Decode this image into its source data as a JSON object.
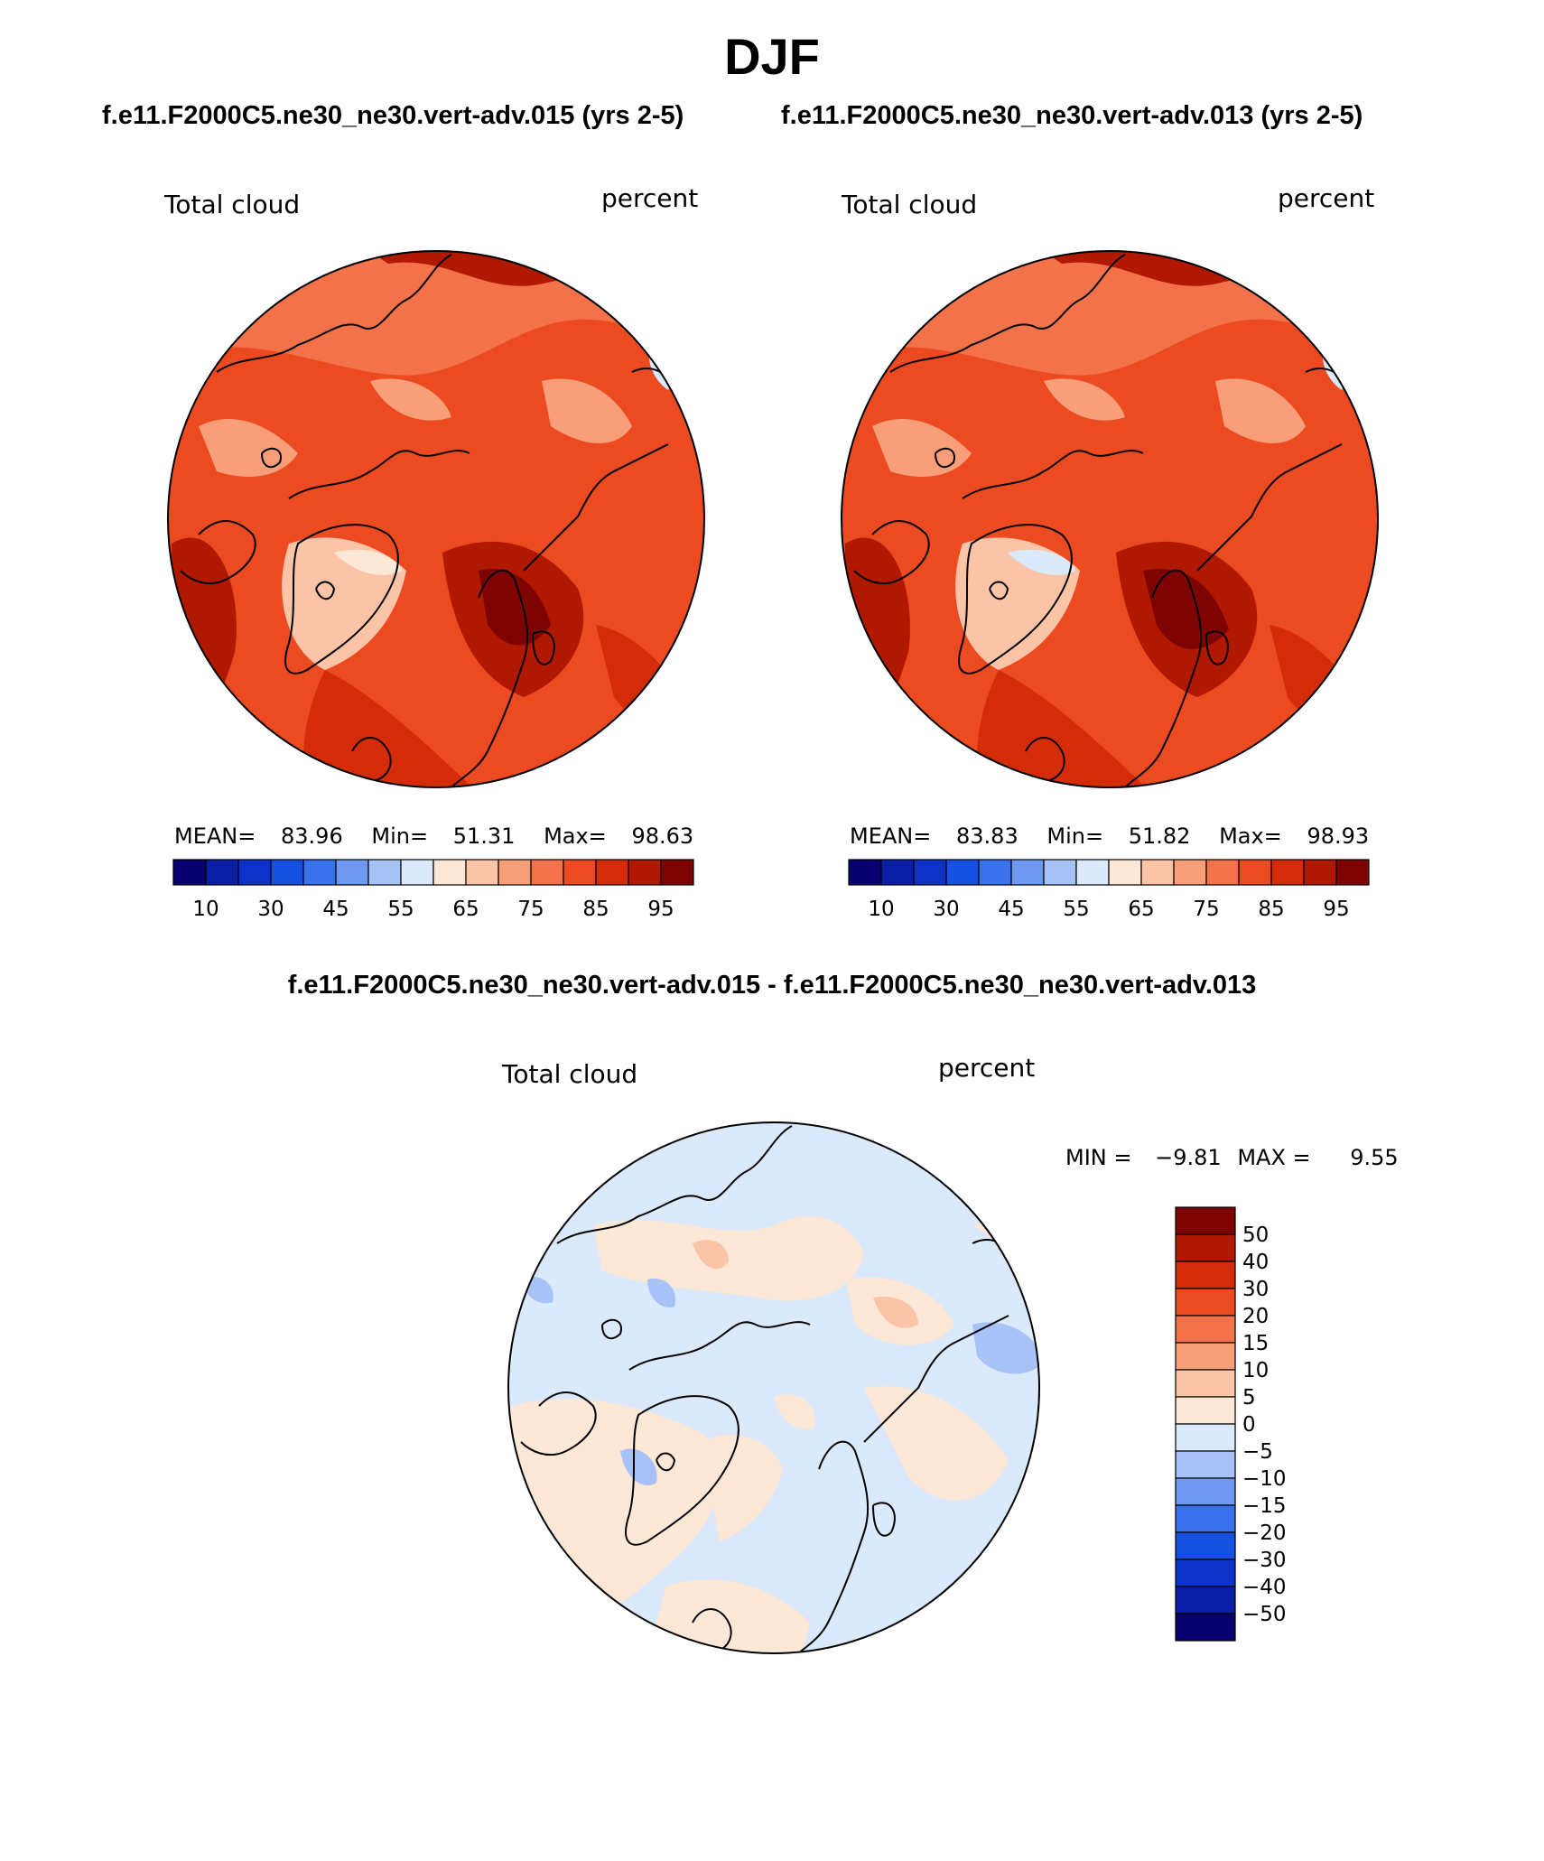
{
  "title": "DJF",
  "panels": [
    {
      "case_title": "f.e11.F2000C5.ne30_ne30.vert-adv.015 (yrs 2-5)",
      "variable": "Total cloud",
      "units": "percent",
      "mean_label": "MEAN=",
      "mean": "83.96",
      "min_label": "Min=",
      "min": "51.31",
      "max_label": "Max=",
      "max": "98.63"
    },
    {
      "case_title": "f.e11.F2000C5.ne30_ne30.vert-adv.013 (yrs 2-5)",
      "variable": "Total cloud",
      "units": "percent",
      "mean_label": "MEAN=",
      "mean": "83.83",
      "min_label": "Min=",
      "min": "51.82",
      "max_label": "Max=",
      "max": "98.93"
    }
  ],
  "diff": {
    "title": "f.e11.F2000C5.ne30_ne30.vert-adv.015 - f.e11.F2000C5.ne30_ne30.vert-adv.013",
    "variable": "Total cloud",
    "units": "percent",
    "min_label": "MIN =",
    "min": "−9.81",
    "max_label": "MAX =",
    "max": "9.55"
  },
  "colorbar_main": {
    "colors": [
      "#08006e",
      "#0a1ea6",
      "#0c32c8",
      "#1650e0",
      "#3a72ee",
      "#6e98f2",
      "#a6c2f6",
      "#dae9fb",
      "#fde8d8",
      "#fbc4a6",
      "#f89e78",
      "#f4724a",
      "#ec4a20",
      "#d42c08",
      "#b01800",
      "#7e0404"
    ],
    "labels": [
      "10",
      "30",
      "45",
      "55",
      "65",
      "75",
      "85",
      "95"
    ]
  },
  "colorbar_diff": {
    "colors": [
      "#7e0404",
      "#b01800",
      "#d42c08",
      "#ec4a20",
      "#f4724a",
      "#f89e78",
      "#fbc4a6",
      "#fde8d8",
      "#dae9fb",
      "#a6c2f6",
      "#6e98f2",
      "#3a72ee",
      "#1650e0",
      "#0c32c8",
      "#0a1ea6",
      "#08006e"
    ],
    "labels": [
      "50",
      "40",
      "30",
      "20",
      "15",
      "10",
      "5",
      "0",
      "−5",
      "−10",
      "−15",
      "−20",
      "−30",
      "−40",
      "−50"
    ]
  }
}
